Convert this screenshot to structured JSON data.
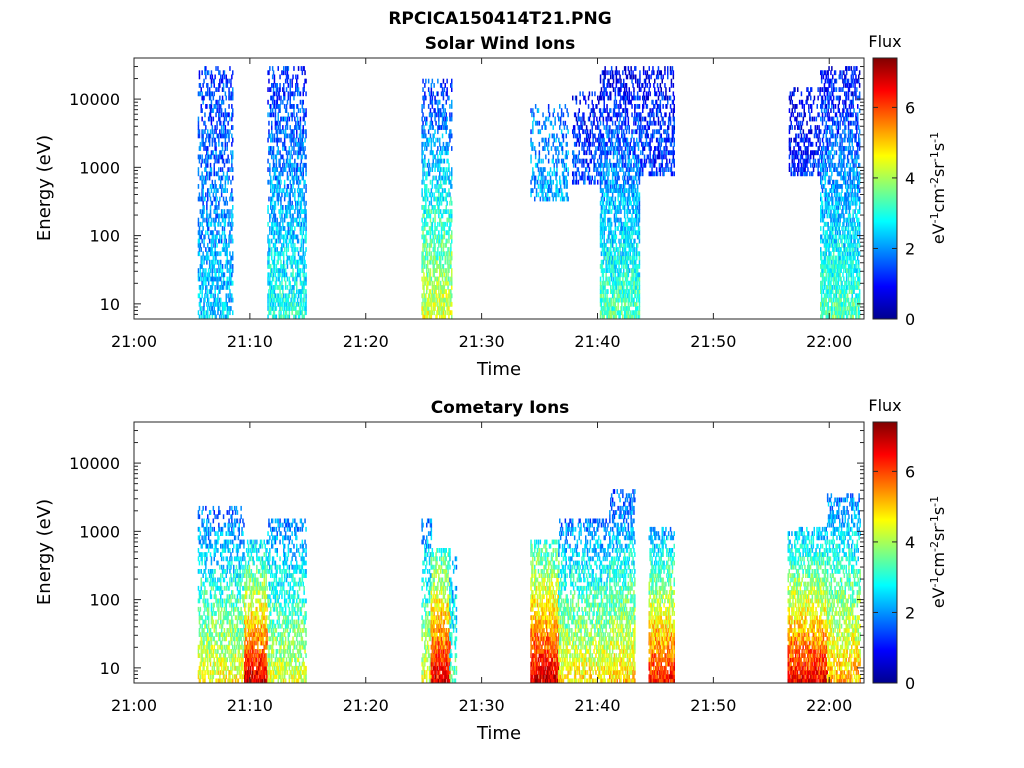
{
  "figure": {
    "title": "RPCICA150414T21.PNG"
  },
  "colorbar": {
    "title": "Flux",
    "ticks": [
      "0",
      "2",
      "4",
      "6"
    ],
    "tick_values": [
      0,
      2,
      4,
      6
    ],
    "range": [
      0,
      7.4
    ],
    "colormap": "jet"
  },
  "chart_data": [
    {
      "type": "heatmap",
      "title": "Solar Wind Ions",
      "xlabel": "Time",
      "ylabel": "Energy (eV)",
      "colorbar_label": "eV-1cm-2sr-1s-1",
      "x_ticks": [
        "21:00",
        "21:10",
        "21:20",
        "21:30",
        "21:40",
        "21:50",
        "22:00"
      ],
      "x_tick_minutes": [
        0,
        10,
        20,
        30,
        40,
        50,
        60
      ],
      "xlim_minutes": [
        0,
        63
      ],
      "y_scale": "log",
      "y_ticks": [
        "10",
        "100",
        "1000",
        "10000"
      ],
      "y_tick_values": [
        10,
        100,
        1000,
        10000
      ],
      "ylim": [
        6,
        40000
      ],
      "bursts": [
        {
          "start_min": 5.5,
          "end_min": 8.5,
          "low_ev": 6,
          "high_ev": 30000,
          "flux_low": 2.4,
          "flux_high": 1.3,
          "density": 0.55
        },
        {
          "start_min": 11.5,
          "end_min": 14.8,
          "low_ev": 6,
          "high_ev": 30000,
          "flux_low": 3.0,
          "flux_high": 1.2,
          "density": 0.6
        },
        {
          "start_min": 24.8,
          "end_min": 27.4,
          "low_ev": 6,
          "high_ev": 20000,
          "flux_low": 4.4,
          "flux_high": 1.2,
          "density": 0.65
        },
        {
          "start_min": 34.2,
          "end_min": 37.4,
          "low_ev": 300,
          "high_ev": 8000,
          "flux_low": 2.2,
          "flux_high": 1.8,
          "density": 0.4
        },
        {
          "start_min": 37.8,
          "end_min": 40.2,
          "low_ev": 600,
          "high_ev": 12000,
          "flux_low": 1.5,
          "flux_high": 1.0,
          "density": 0.45
        },
        {
          "start_min": 40.2,
          "end_min": 43.6,
          "low_ev": 6,
          "high_ev": 30000,
          "flux_low": 3.4,
          "flux_high": 0.8,
          "density": 0.75
        },
        {
          "start_min": 43.6,
          "end_min": 46.6,
          "low_ev": 700,
          "high_ev": 30000,
          "flux_low": 1.4,
          "flux_high": 0.9,
          "density": 0.45
        },
        {
          "start_min": 56.5,
          "end_min": 59.2,
          "low_ev": 800,
          "high_ev": 15000,
          "flux_low": 1.2,
          "flux_high": 0.8,
          "density": 0.5
        },
        {
          "start_min": 59.2,
          "end_min": 62.6,
          "low_ev": 6,
          "high_ev": 30000,
          "flux_low": 3.4,
          "flux_high": 0.9,
          "density": 0.75
        }
      ]
    },
    {
      "type": "heatmap",
      "title": "Cometary Ions",
      "xlabel": "Time",
      "ylabel": "Energy (eV)",
      "colorbar_label": "eV-1cm-2sr-1s-1",
      "x_ticks": [
        "21:00",
        "21:10",
        "21:20",
        "21:30",
        "21:40",
        "21:50",
        "22:00"
      ],
      "x_tick_minutes": [
        0,
        10,
        20,
        30,
        40,
        50,
        60
      ],
      "xlim_minutes": [
        0,
        63
      ],
      "y_scale": "log",
      "y_ticks": [
        "10",
        "100",
        "1000",
        "10000"
      ],
      "y_tick_values": [
        10,
        100,
        1000,
        10000
      ],
      "ylim": [
        6,
        40000
      ],
      "bursts": [
        {
          "start_min": 5.5,
          "end_min": 9.5,
          "low_ev": 6,
          "high_ev": 2500,
          "flux_low": 4.6,
          "flux_high": 1.6,
          "density": 0.6
        },
        {
          "start_min": 9.5,
          "end_min": 11.5,
          "low_ev": 6,
          "high_ev": 700,
          "flux_low": 6.8,
          "flux_high": 2.5,
          "density": 0.85
        },
        {
          "start_min": 11.5,
          "end_min": 14.8,
          "low_ev": 6,
          "high_ev": 1500,
          "flux_low": 4.4,
          "flux_high": 1.8,
          "density": 0.6
        },
        {
          "start_min": 24.8,
          "end_min": 25.6,
          "low_ev": 6,
          "high_ev": 1500,
          "flux_low": 4.5,
          "flux_high": 1.8,
          "density": 0.6
        },
        {
          "start_min": 25.6,
          "end_min": 27.2,
          "low_ev": 6,
          "high_ev": 600,
          "flux_low": 6.8,
          "flux_high": 3.0,
          "density": 0.9
        },
        {
          "start_min": 27.2,
          "end_min": 27.8,
          "low_ev": 6,
          "high_ev": 400,
          "flux_low": 3.4,
          "flux_high": 2.0,
          "density": 0.5
        },
        {
          "start_min": 34.2,
          "end_min": 36.6,
          "low_ev": 6,
          "high_ev": 800,
          "flux_low": 6.8,
          "flux_high": 3.0,
          "density": 0.9
        },
        {
          "start_min": 36.6,
          "end_min": 41.0,
          "low_ev": 6,
          "high_ev": 1500,
          "flux_low": 4.8,
          "flux_high": 1.8,
          "density": 0.65
        },
        {
          "start_min": 41.0,
          "end_min": 43.2,
          "low_ev": 6,
          "high_ev": 4000,
          "flux_low": 5.0,
          "flux_high": 1.5,
          "density": 0.7
        },
        {
          "start_min": 44.4,
          "end_min": 46.6,
          "low_ev": 6,
          "high_ev": 1200,
          "flux_low": 6.4,
          "flux_high": 2.0,
          "density": 0.85
        },
        {
          "start_min": 56.4,
          "end_min": 59.8,
          "low_ev": 6,
          "high_ev": 1200,
          "flux_low": 6.6,
          "flux_high": 2.2,
          "density": 0.85
        },
        {
          "start_min": 59.8,
          "end_min": 62.6,
          "low_ev": 6,
          "high_ev": 3500,
          "flux_low": 5.2,
          "flux_high": 1.8,
          "density": 0.7
        }
      ]
    }
  ]
}
